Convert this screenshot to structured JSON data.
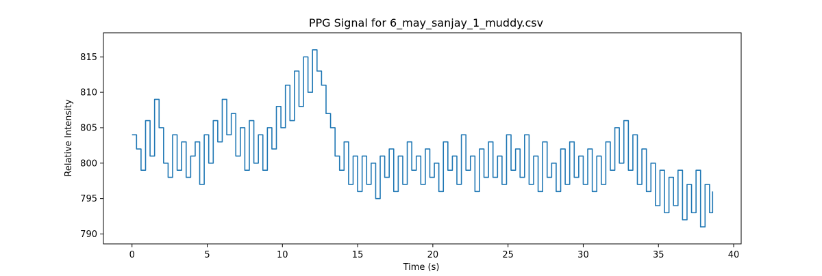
{
  "chart_data": {
    "type": "line",
    "title": "PPG Signal for 6_may_sanjay_1_muddy.csv",
    "xlabel": "Time (s)",
    "ylabel": "Relative Intensity",
    "xlim": [
      -1.9,
      40.5
    ],
    "ylim": [
      788.6,
      818.4
    ],
    "xticks": [
      0,
      5,
      10,
      15,
      20,
      25,
      30,
      35,
      40
    ],
    "yticks": [
      790,
      795,
      800,
      805,
      810,
      815
    ],
    "grid": false,
    "series": [
      {
        "color": "#1f77b4",
        "x": [
          0.0,
          0.3,
          0.6,
          0.9,
          1.2,
          1.5,
          1.8,
          2.1,
          2.4,
          2.7,
          3.0,
          3.3,
          3.6,
          3.9,
          4.2,
          4.5,
          4.8,
          5.1,
          5.4,
          5.7,
          6.0,
          6.3,
          6.6,
          6.9,
          7.2,
          7.5,
          7.8,
          8.1,
          8.4,
          8.7,
          9.0,
          9.3,
          9.6,
          9.9,
          10.2,
          10.5,
          10.8,
          11.1,
          11.4,
          11.7,
          12.0,
          12.3,
          12.6,
          12.9,
          13.2,
          13.5,
          13.8,
          14.1,
          14.4,
          14.7,
          15.0,
          15.3,
          15.6,
          15.9,
          16.2,
          16.5,
          16.8,
          17.1,
          17.4,
          17.7,
          18.0,
          18.3,
          18.6,
          18.9,
          19.2,
          19.5,
          19.8,
          20.1,
          20.4,
          20.7,
          21.0,
          21.3,
          21.6,
          21.9,
          22.2,
          22.5,
          22.8,
          23.1,
          23.4,
          23.7,
          24.0,
          24.3,
          24.6,
          24.9,
          25.2,
          25.5,
          25.8,
          26.1,
          26.4,
          26.7,
          27.0,
          27.3,
          27.6,
          27.9,
          28.2,
          28.5,
          28.8,
          29.1,
          29.4,
          29.7,
          30.0,
          30.3,
          30.6,
          30.9,
          31.2,
          31.5,
          31.8,
          32.1,
          32.4,
          32.7,
          33.0,
          33.3,
          33.6,
          33.9,
          34.2,
          34.5,
          34.8,
          35.1,
          35.4,
          35.7,
          36.0,
          36.3,
          36.6,
          36.9,
          37.2,
          37.5,
          37.8,
          38.1,
          38.4,
          38.6
        ],
        "y": [
          804,
          802,
          799,
          806,
          801,
          809,
          805,
          800,
          798,
          804,
          799,
          803,
          798,
          801,
          803,
          797,
          804,
          800,
          806,
          803,
          809,
          804,
          807,
          801,
          805,
          799,
          806,
          800,
          804,
          799,
          805,
          802,
          808,
          805,
          811,
          806,
          813,
          808,
          815,
          810,
          816,
          813,
          811,
          807,
          805,
          801,
          799,
          803,
          797,
          801,
          796,
          801,
          797,
          800,
          795,
          801,
          798,
          802,
          796,
          801,
          797,
          803,
          799,
          801,
          797,
          802,
          798,
          800,
          796,
          803,
          799,
          801,
          797,
          804,
          799,
          801,
          796,
          802,
          798,
          803,
          798,
          801,
          797,
          804,
          799,
          802,
          798,
          804,
          797,
          801,
          796,
          803,
          798,
          800,
          796,
          802,
          797,
          803,
          798,
          801,
          797,
          802,
          796,
          801,
          797,
          803,
          799,
          805,
          800,
          806,
          799,
          804,
          797,
          802,
          796,
          800,
          794,
          799,
          793,
          798,
          794,
          799,
          792,
          797,
          793,
          799,
          791,
          797,
          793,
          796
        ]
      }
    ]
  }
}
